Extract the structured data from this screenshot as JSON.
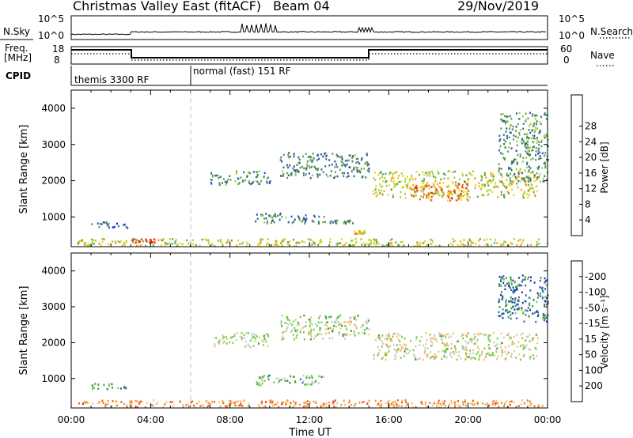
{
  "header": {
    "title": "Christmas Valley East (fitACF)",
    "beam": "Beam 04",
    "date": "29/Nov/2019"
  },
  "summary_panels": {
    "nsky_label": "N.Sky",
    "nsearch_label": "N.Search",
    "nsky_ticks": [
      "10^5",
      "10^0"
    ],
    "nsearch_ticks": [
      "10^5",
      "10^0"
    ],
    "freq_label_line1": "Freq.",
    "freq_label_line2": "[MHz]",
    "freq_ticks": [
      "18",
      "8"
    ],
    "nave_label": "Nave",
    "nave_ticks": [
      "60",
      "0"
    ],
    "cpid_label": "CPID",
    "cpid_modes": [
      {
        "label": "themis 3300 RF",
        "start_hour": 0,
        "end_hour": 6
      },
      {
        "label": "normal (fast) 151 RF",
        "start_hour": 6,
        "end_hour": 24
      }
    ]
  },
  "chart_data": [
    {
      "type": "heatmap",
      "name": "power",
      "ylabel": "Slant Range [km]",
      "ylim": [
        180,
        4500
      ],
      "yticks": [
        1000,
        2000,
        3000,
        4000
      ],
      "xlim": [
        0,
        24
      ],
      "colorbar": {
        "label": "Power [dB]",
        "ticks": [
          "4",
          "8",
          "12",
          "16",
          "20",
          "24",
          "28"
        ],
        "colors": [
          "#0022ee",
          "#2850b8",
          "#3a7a68",
          "#5aa048",
          "#9ad040",
          "#f0d020",
          "#f8a010",
          "#f06010",
          "#e02010"
        ]
      },
      "echo_regions": [
        {
          "x": [
            0.3,
            24.0
          ],
          "y": [
            220,
            420
          ],
          "level": 0.55
        },
        {
          "x": [
            1.0,
            2.8
          ],
          "y": [
            720,
            880
          ],
          "level": 0.25
        },
        {
          "x": [
            3.0,
            4.2
          ],
          "y": [
            320,
            420
          ],
          "level": 0.95
        },
        {
          "x": [
            9.2,
            12.8
          ],
          "y": [
            840,
            1120
          ],
          "level": 0.3
        },
        {
          "x": [
            12.8,
            14.2
          ],
          "y": [
            840,
            940
          ],
          "level": 0.3
        },
        {
          "x": [
            14.2,
            14.8
          ],
          "y": [
            560,
            640
          ],
          "level": 0.65
        },
        {
          "x": [
            7.0,
            10.0
          ],
          "y": [
            1900,
            2300
          ],
          "level": 0.3
        },
        {
          "x": [
            10.5,
            15.0
          ],
          "y": [
            2100,
            2800
          ],
          "level": 0.3
        },
        {
          "x": [
            15.2,
            23.5
          ],
          "y": [
            1550,
            2300
          ],
          "level": 0.55
        },
        {
          "x": [
            17.0,
            20.0
          ],
          "y": [
            1450,
            1950
          ],
          "level": 0.8
        },
        {
          "x": [
            21.5,
            24.0
          ],
          "y": [
            2000,
            3900
          ],
          "level": 0.35
        }
      ]
    },
    {
      "type": "heatmap",
      "name": "velocity",
      "ylabel": "Slant Range [km]",
      "ylim": [
        180,
        4500
      ],
      "yticks": [
        1000,
        2000,
        3000,
        4000
      ],
      "xlim": [
        0,
        24
      ],
      "xlabel": "Time UT",
      "xticks": [
        "00:00",
        "04:00",
        "08:00",
        "12:00",
        "16:00",
        "20:00",
        "00:00"
      ],
      "colorbar": {
        "label": "Velocity [m s⁻¹]",
        "ticks": [
          "200",
          "100",
          "50",
          "15",
          "-15",
          "-50",
          "-100",
          "-200"
        ],
        "colors": [
          "#1c3aa8",
          "#2a60b0",
          "#3a9a40",
          "#70d040",
          "#c8c8c0",
          "#f8c070",
          "#f89030",
          "#f06010",
          "#e02010"
        ]
      },
      "echo_regions": [
        {
          "x": [
            0.3,
            24.0
          ],
          "y": [
            220,
            420
          ],
          "level": 0.72
        },
        {
          "x": [
            1.0,
            2.8
          ],
          "y": [
            720,
            880
          ],
          "level": 0.3
        },
        {
          "x": [
            9.2,
            12.8
          ],
          "y": [
            840,
            1120
          ],
          "level": 0.35
        },
        {
          "x": [
            7.0,
            10.0
          ],
          "y": [
            1900,
            2300
          ],
          "level": 0.45
        },
        {
          "x": [
            10.5,
            15.0
          ],
          "y": [
            2100,
            2800
          ],
          "level": 0.45
        },
        {
          "x": [
            15.2,
            23.5
          ],
          "y": [
            1550,
            2300
          ],
          "level": 0.5
        },
        {
          "x": [
            21.5,
            24.0
          ],
          "y": [
            2600,
            3900
          ],
          "level": 0.2
        }
      ]
    }
  ]
}
